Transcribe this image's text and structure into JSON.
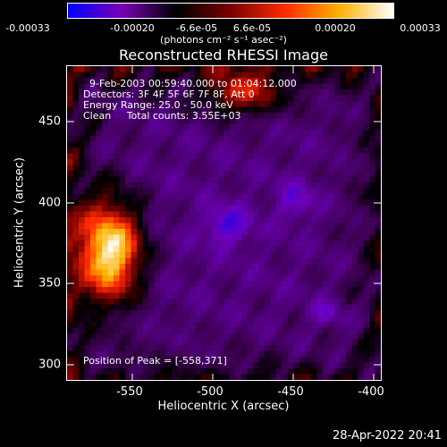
{
  "colorbar": {
    "ticks": [
      "-0.00033",
      "-0.00020",
      "-6.6e-05",
      "6.6e-05",
      "0.00020",
      "0.00033"
    ],
    "units": "(photons cm⁻² s⁻¹ asec⁻²)",
    "colors": [
      "#0000ff",
      "#7a00b3",
      "#000000",
      "#7a0000",
      "#ff2a00",
      "#ffb000",
      "#ffffff"
    ]
  },
  "title": "Reconstructed RHESSI Image",
  "annotations": {
    "time_range": "9-Feb-2003 00:59:40.000 to 01:04:12.000",
    "detectors": "Detectors: 3F 4F 5F 6F 7F 8F, Att 0",
    "energy": "Energy Range: 25.0 - 50.0 keV",
    "clean": "Clean     Total counts: 3.55E+03",
    "peak": "Position of Peak = [-558,371]"
  },
  "axes": {
    "xlabel": "Heliocentric X (arcsec)",
    "ylabel": "Heliocentric Y (arcsec)",
    "xticks": [
      "-550",
      "-500",
      "-450",
      "-400"
    ],
    "yticks": [
      "450",
      "400",
      "350",
      "300"
    ]
  },
  "footer": {
    "date": "28-Apr-2022 20:41"
  },
  "chart_data": {
    "type": "heatmap",
    "title": "Reconstructed RHESSI Image",
    "xlabel": "Heliocentric X (arcsec)",
    "ylabel": "Heliocentric Y (arcsec)",
    "xlim": [
      -583,
      -388
    ],
    "ylim": [
      293,
      488
    ],
    "color_range": [
      -0.00033,
      0.00033
    ],
    "peak": [
      -558,
      371
    ]
  }
}
